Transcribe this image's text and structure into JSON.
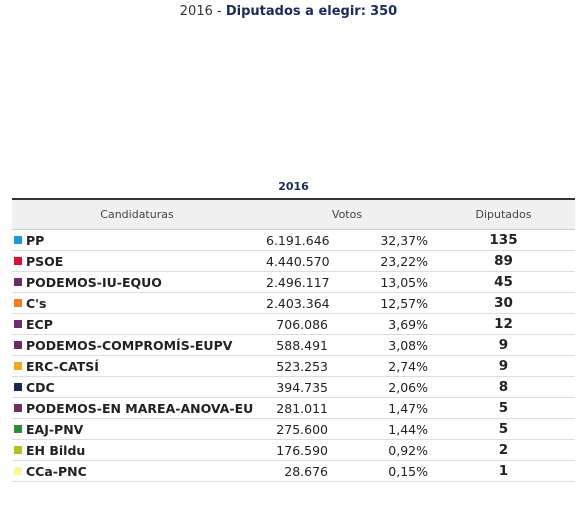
{
  "header": {
    "year": "2016",
    "separator": "-",
    "label": "Diputados a elegir:",
    "total": 350
  },
  "table": {
    "caption": "2016",
    "columns": [
      "Candidaturas",
      "Votos",
      "Diputados"
    ],
    "rows": [
      {
        "name": "PP",
        "color": "#1a9ad6",
        "votes": "6.191.646",
        "percent": "32,37%",
        "seats": 135
      },
      {
        "name": "PSOE",
        "color": "#e10f2f",
        "votes": "4.440.570",
        "percent": "23,22%",
        "seats": 89
      },
      {
        "name": "PODEMOS-IU-EQUO",
        "color": "#6a2c63",
        "votes": "2.496.117",
        "percent": "13,05%",
        "seats": 45
      },
      {
        "name": "C's",
        "color": "#f47b20",
        "votes": "2.403.364",
        "percent": "12,57%",
        "seats": 30
      },
      {
        "name": "ECP",
        "color": "#6e2d6b",
        "votes": "706.086",
        "percent": "3,69%",
        "seats": 12
      },
      {
        "name": "PODEMOS-COMPROMÍS-EUPV",
        "color": "#6b2a5f",
        "votes": "588.491",
        "percent": "3,08%",
        "seats": 9
      },
      {
        "name": "ERC-CATSÍ",
        "color": "#f6a623",
        "votes": "523.253",
        "percent": "2,74%",
        "seats": 9
      },
      {
        "name": "CDC",
        "color": "#1b2748",
        "votes": "394.735",
        "percent": "2,06%",
        "seats": 8
      },
      {
        "name": "PODEMOS-EN MAREA-ANOVA-EU",
        "color": "#6d2e60",
        "votes": "281.011",
        "percent": "1,47%",
        "seats": 5
      },
      {
        "name": "EAJ-PNV",
        "color": "#2a8c3b",
        "votes": "275.600",
        "percent": "1,44%",
        "seats": 5
      },
      {
        "name": "EH Bildu",
        "color": "#b4c21f",
        "votes": "176.590",
        "percent": "0,92%",
        "seats": 2
      },
      {
        "name": "CCa-PNC",
        "color": "#fff59d",
        "votes": "28.676",
        "percent": "0,15%",
        "seats": 1
      }
    ]
  }
}
